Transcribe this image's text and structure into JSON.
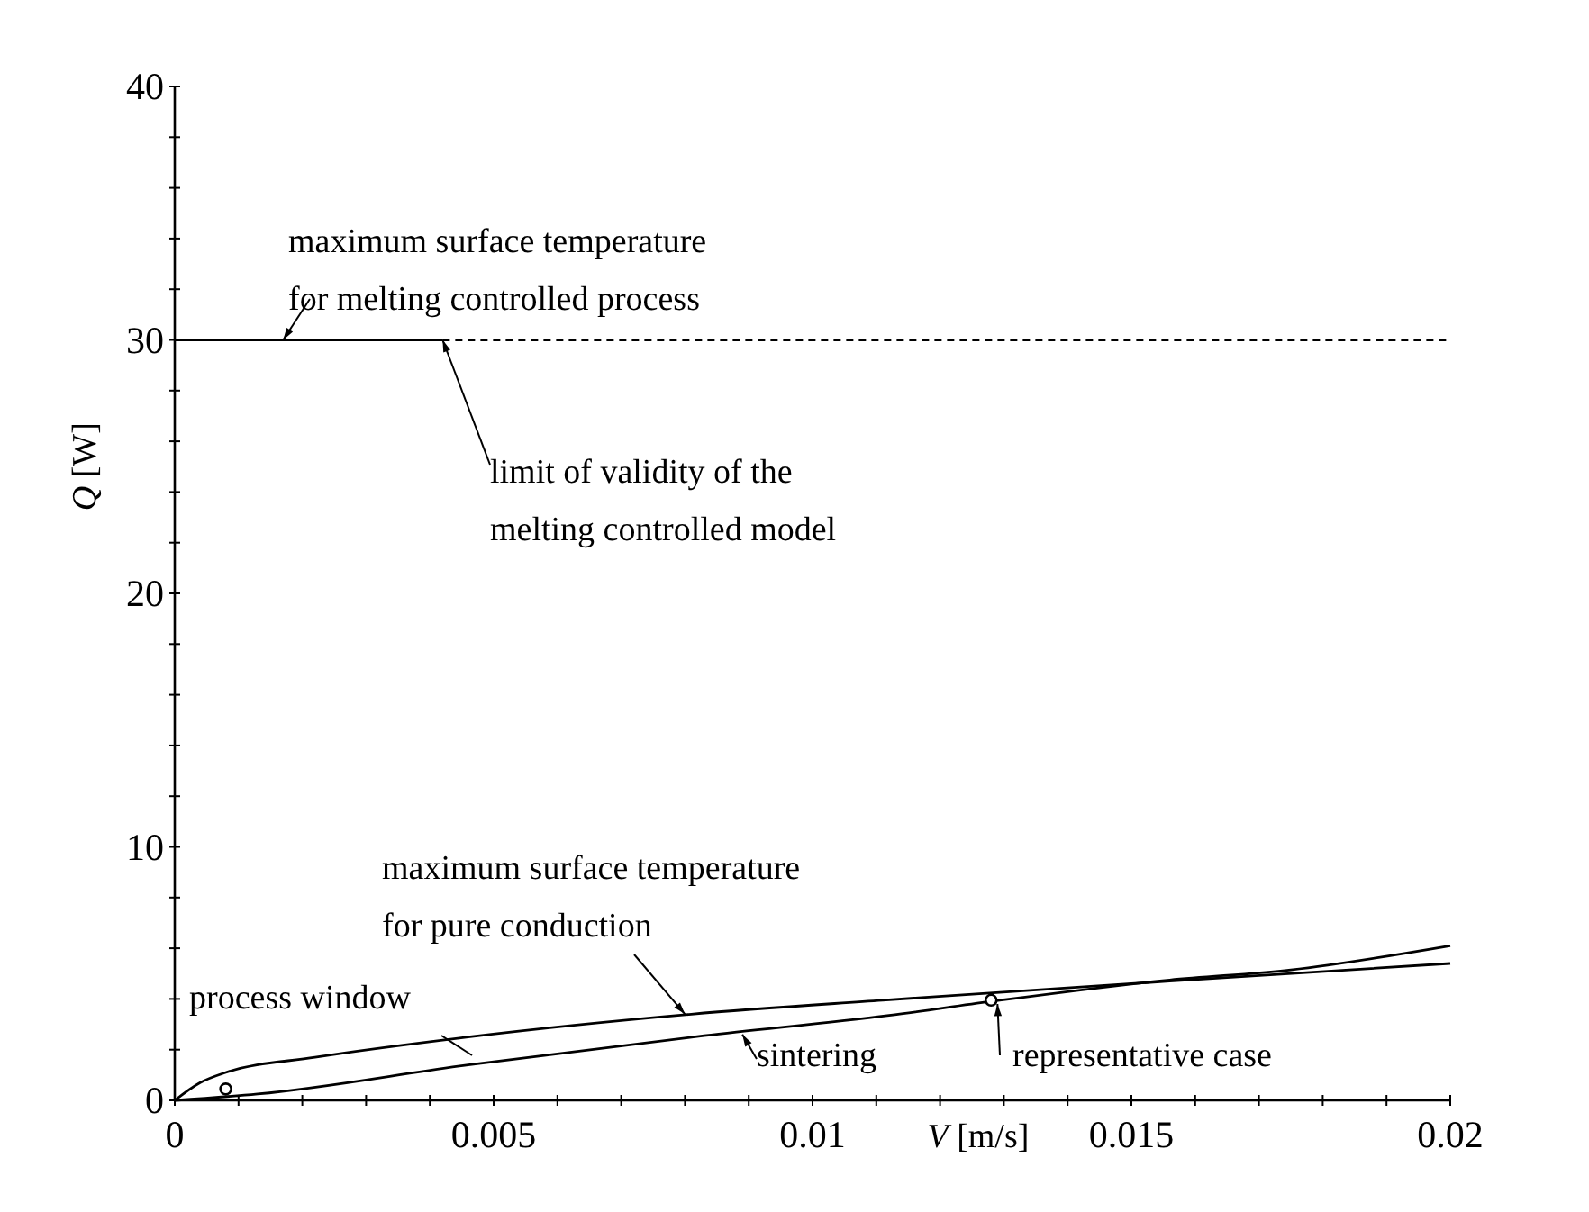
{
  "chart_data": {
    "type": "line",
    "xlabel": "V [m/s]",
    "ylabel": "Q [W]",
    "xlim": [
      0,
      0.02
    ],
    "ylim": [
      0,
      40
    ],
    "xticks": [
      0,
      {
        "value": 0.001,
        "label": null
      },
      {
        "value": 0.002,
        "label": null
      },
      {
        "value": 0.003,
        "label": null
      },
      {
        "value": 0.004,
        "label": null
      },
      0.005,
      {
        "value": 0.006,
        "label": null
      },
      {
        "value": 0.007,
        "label": null
      },
      {
        "value": 0.008,
        "label": null
      },
      {
        "value": 0.009,
        "label": null
      },
      0.01,
      {
        "value": 0.011,
        "label": null
      },
      {
        "value": 0.012,
        "label": null
      },
      {
        "value": 0.013,
        "label": null
      },
      {
        "value": 0.014,
        "label": null
      },
      0.015,
      {
        "value": 0.016,
        "label": null
      },
      {
        "value": 0.017,
        "label": null
      },
      {
        "value": 0.018,
        "label": null
      },
      {
        "value": 0.019,
        "label": null
      },
      0.02
    ],
    "yticks": [
      0,
      {
        "value": 2,
        "label": null
      },
      {
        "value": 4,
        "label": null
      },
      {
        "value": 6,
        "label": null
      },
      {
        "value": 8,
        "label": null
      },
      10,
      {
        "value": 12,
        "label": null
      },
      {
        "value": 14,
        "label": null
      },
      {
        "value": 16,
        "label": null
      },
      {
        "value": 18,
        "label": null
      },
      20,
      {
        "value": 22,
        "label": null
      },
      {
        "value": 24,
        "label": null
      },
      {
        "value": 26,
        "label": null
      },
      {
        "value": 28,
        "label": null
      },
      30,
      {
        "value": 32,
        "label": null
      },
      {
        "value": 34,
        "label": null
      },
      {
        "value": 36,
        "label": null
      },
      {
        "value": 38,
        "label": null
      },
      40
    ],
    "grid": false,
    "series": [
      {
        "color": "#000000",
        "line_style": "solid",
        "x": [
          0,
          0.0042
        ],
        "values": [
          30,
          30
        ]
      },
      {
        "color": "#000000",
        "line_style": "dashed",
        "x": [
          0.0042,
          0.02
        ],
        "values": [
          30,
          30
        ]
      },
      {
        "color": "#000000",
        "line_style": "solid",
        "x": [
          0,
          0.0004,
          0.0008,
          0.0022,
          0.0046,
          0.0081,
          0.0111,
          0.0156,
          0.02
        ],
        "values": [
          0,
          0.7,
          1.1,
          1.7,
          2.5,
          3.4,
          3.95,
          4.7,
          5.4
        ]
      },
      {
        "color": "#000000",
        "line_style": "solid",
        "x": [
          0,
          0.0013,
          0.0046,
          0.0083,
          0.0112,
          0.0128,
          0.0156,
          0.0175,
          0.02
        ],
        "values": [
          0,
          0.25,
          1.4,
          2.55,
          3.35,
          3.9,
          4.75,
          5.15,
          6.1
        ]
      },
      {
        "type": "scatter",
        "color": "#000000",
        "marker": "circle",
        "x": [
          0.0008,
          0.0128
        ],
        "values": [
          0.45,
          3.95
        ]
      }
    ],
    "annotations": [
      {
        "text": "maximum surface temperature for melting controlled process",
        "x": 0.0017,
        "y": 30
      },
      {
        "text": "limit of validity of the melting controlled model",
        "x": 0.0042,
        "y": 30
      },
      {
        "text": "maximum surface temperature for pure conduction",
        "x": 0.008,
        "y": 3.4
      },
      "process window",
      {
        "text": "sintering",
        "x": 0.0089,
        "y": 2.6
      },
      {
        "text": "representative case",
        "x": 0.0129,
        "y": 3.8
      }
    ]
  }
}
